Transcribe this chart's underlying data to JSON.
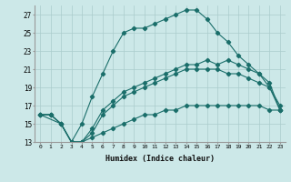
{
  "xlabel": "Humidex (Indice chaleur)",
  "bg_color": "#cce8e8",
  "grid_color": "#aacccc",
  "line_color": "#1a6e6a",
  "xlim": [
    -0.5,
    23.5
  ],
  "ylim": [
    13,
    28
  ],
  "xticks": [
    0,
    1,
    2,
    3,
    4,
    5,
    6,
    7,
    8,
    9,
    10,
    11,
    12,
    13,
    14,
    15,
    16,
    17,
    18,
    19,
    20,
    21,
    22,
    23
  ],
  "yticks": [
    13,
    15,
    17,
    19,
    21,
    23,
    25,
    27
  ],
  "line1_x": [
    0,
    2,
    3,
    4,
    5,
    6,
    7,
    8,
    9,
    10,
    11,
    12,
    13,
    14,
    15,
    16,
    17,
    18,
    19,
    20,
    21,
    22,
    23
  ],
  "line1_y": [
    16,
    15,
    13,
    15,
    18,
    20.5,
    23,
    25,
    25.5,
    25.5,
    26,
    26.5,
    27,
    27.5,
    27.5,
    26.5,
    25,
    24,
    22.5,
    21.5,
    20.5,
    19,
    17
  ],
  "line2_x": [
    0,
    1,
    2,
    3,
    4,
    5,
    6,
    7,
    8,
    9,
    10,
    11,
    12,
    13,
    14,
    15,
    16,
    17,
    18,
    19,
    20,
    21,
    22,
    23
  ],
  "line2_y": [
    16,
    16,
    15,
    13,
    13,
    14.5,
    16.5,
    17.5,
    18.5,
    19,
    19.5,
    20,
    20.5,
    21,
    21.5,
    21.5,
    22,
    21.5,
    22,
    21.5,
    21,
    20.5,
    19.5,
    16.5
  ],
  "line3_x": [
    0,
    1,
    2,
    3,
    4,
    5,
    6,
    7,
    8,
    9,
    10,
    11,
    12,
    13,
    14,
    15,
    16,
    17,
    18,
    19,
    20,
    21,
    22,
    23
  ],
  "line3_y": [
    16,
    16,
    15,
    13,
    13,
    14,
    16,
    17,
    18,
    18.5,
    19,
    19.5,
    20,
    20.5,
    21,
    21,
    21,
    21,
    20.5,
    20.5,
    20,
    19.5,
    19,
    16.5
  ],
  "line4_x": [
    0,
    1,
    2,
    3,
    4,
    5,
    6,
    7,
    8,
    9,
    10,
    11,
    12,
    13,
    14,
    15,
    16,
    17,
    18,
    19,
    20,
    21,
    22,
    23
  ],
  "line4_y": [
    16,
    16,
    15,
    13,
    13,
    13.5,
    14,
    14.5,
    15,
    15.5,
    16,
    16,
    16.5,
    16.5,
    17,
    17,
    17,
    17,
    17,
    17,
    17,
    17,
    16.5,
    16.5
  ]
}
